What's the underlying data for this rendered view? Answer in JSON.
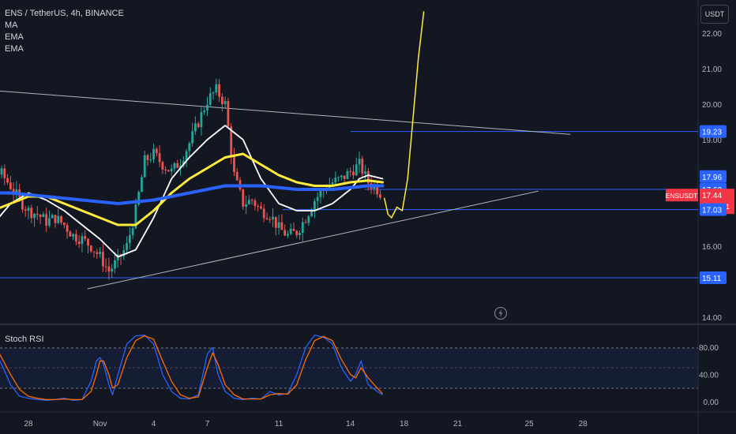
{
  "header": {
    "symbol_line": "ENS / TetherUS, 4h, BINANCE",
    "indicators": [
      "MA",
      "EMA",
      "EMA"
    ]
  },
  "currency_button": "USDT",
  "rsi_title": "Stoch RSI",
  "icons": {
    "flash": "lightning-bolt-icon"
  },
  "colors": {
    "background": "#131722",
    "up": "#26a69a",
    "down": "#ef5350",
    "ma_white": "#ffffff",
    "ema_yellow": "#ffeb3b",
    "ema_blue": "#2962ff",
    "projection": "#ffeb3b",
    "hline": "#2962ff",
    "trendline": "#b2b5be",
    "rsi_k": "#2962ff",
    "rsi_d": "#ff6d00"
  },
  "chart_data": [
    {
      "type": "candlestick",
      "title": "ENS / TetherUS, 4h, BINANCE",
      "ylim": [
        14.0,
        22.6
      ],
      "y_ticks": [
        "22.00",
        "21.00",
        "20.00",
        "19.00",
        "16.00",
        "14.00"
      ],
      "x_ticks": [
        "28",
        "Nov",
        "4",
        "7",
        "11",
        "14",
        "18",
        "21",
        "25",
        "28"
      ],
      "price_tags": [
        {
          "label": "19.23",
          "value": 19.23,
          "color": "#2962ff"
        },
        {
          "label": "17.96",
          "value": 17.96,
          "color": "#2962ff"
        },
        {
          "label": "17.60",
          "value": 17.6,
          "color": "#2962ff"
        },
        {
          "label": "ENSUSDT",
          "value": 17.44,
          "color": "#f23645",
          "sub": "17.44",
          "countdown": "02:03:31"
        },
        {
          "label": "17.03",
          "value": 17.03,
          "color": "#2962ff"
        },
        {
          "label": "15.11",
          "value": 15.11,
          "color": "#2962ff"
        }
      ],
      "hlines": [
        {
          "value": 19.23,
          "from_day": 18.0
        },
        {
          "value": 17.6,
          "from_day": 18.8
        },
        {
          "value": 17.03,
          "from_day": 14.2
        },
        {
          "value": 15.11,
          "from_day": -5.0
        }
      ],
      "trendlines": [
        {
          "from": [
            -5.0,
            20.5
          ],
          "to": [
            30.3,
            19.15
          ]
        },
        {
          "from": [
            3.3,
            14.8
          ],
          "to": [
            28.5,
            17.55
          ]
        }
      ],
      "close_path": [
        [
          -5.0,
          16.2
        ],
        [
          -4.0,
          16.3
        ],
        [
          -3.0,
          16.5
        ],
        [
          -2.6,
          17.1
        ],
        [
          -2.0,
          17.8
        ],
        [
          -1.6,
          18.1
        ],
        [
          -1.0,
          17.7
        ],
        [
          -0.5,
          17.3
        ],
        [
          0.0,
          17.0
        ],
        [
          0.5,
          16.9
        ],
        [
          1.0,
          16.7
        ],
        [
          1.5,
          16.8
        ],
        [
          2.0,
          16.6
        ],
        [
          2.5,
          16.3
        ],
        [
          3.0,
          16.2
        ],
        [
          3.5,
          16.0
        ],
        [
          4.0,
          15.7
        ],
        [
          4.5,
          15.3
        ],
        [
          5.0,
          15.6
        ],
        [
          5.5,
          16.0
        ],
        [
          6.0,
          17.0
        ],
        [
          6.5,
          18.4
        ],
        [
          7.0,
          18.6
        ],
        [
          7.5,
          18.3
        ],
        [
          8.0,
          18.1
        ],
        [
          8.5,
          18.4
        ],
        [
          9.0,
          18.9
        ],
        [
          9.5,
          19.5
        ],
        [
          10.0,
          20.1
        ],
        [
          10.5,
          20.4
        ],
        [
          11.0,
          20.0
        ],
        [
          11.2,
          19.2
        ],
        [
          11.5,
          18.0
        ],
        [
          12.0,
          17.2
        ],
        [
          12.5,
          17.3
        ],
        [
          13.0,
          17.0
        ],
        [
          13.5,
          16.9
        ],
        [
          14.0,
          16.5
        ],
        [
          14.5,
          16.3
        ],
        [
          15.0,
          16.4
        ],
        [
          15.5,
          16.8
        ],
        [
          16.0,
          17.3
        ],
        [
          16.5,
          17.6
        ],
        [
          17.0,
          17.8
        ],
        [
          17.5,
          17.9
        ],
        [
          18.0,
          18.1
        ],
        [
          18.5,
          18.3
        ],
        [
          19.0,
          17.8
        ],
        [
          19.5,
          17.6
        ],
        [
          19.8,
          17.44
        ]
      ],
      "series": [
        {
          "name": "MA",
          "points": [
            [
              -5.0,
              17.0
            ],
            [
              -4.0,
              16.6
            ],
            [
              -3.0,
              16.4
            ],
            [
              -2.0,
              16.6
            ],
            [
              -1.0,
              17.2
            ],
            [
              0.0,
              17.5
            ],
            [
              1.0,
              17.3
            ],
            [
              2.0,
              17.0
            ],
            [
              3.0,
              16.6
            ],
            [
              4.0,
              16.2
            ],
            [
              5.0,
              15.7
            ],
            [
              6.0,
              15.9
            ],
            [
              7.0,
              16.8
            ],
            [
              8.0,
              17.9
            ],
            [
              9.0,
              18.5
            ],
            [
              10.0,
              19.0
            ],
            [
              11.0,
              19.4
            ],
            [
              12.0,
              19.0
            ],
            [
              13.0,
              17.9
            ],
            [
              14.0,
              17.2
            ],
            [
              15.0,
              17.0
            ],
            [
              16.0,
              17.0
            ],
            [
              17.0,
              17.2
            ],
            [
              18.0,
              17.6
            ],
            [
              18.5,
              17.9
            ],
            [
              19.0,
              18.0
            ],
            [
              19.8,
              17.9
            ]
          ]
        },
        {
          "name": "EMA",
          "points": [
            [
              -5.0,
              17.2
            ],
            [
              -4.0,
              17.0
            ],
            [
              -3.0,
              16.9
            ],
            [
              -2.0,
              17.0
            ],
            [
              -1.0,
              17.2
            ],
            [
              0.0,
              17.4
            ],
            [
              1.0,
              17.4
            ],
            [
              2.0,
              17.2
            ],
            [
              3.0,
              17.0
            ],
            [
              4.0,
              16.8
            ],
            [
              5.0,
              16.6
            ],
            [
              6.0,
              16.6
            ],
            [
              7.0,
              17.0
            ],
            [
              8.0,
              17.5
            ],
            [
              9.0,
              17.9
            ],
            [
              10.0,
              18.2
            ],
            [
              11.0,
              18.5
            ],
            [
              12.0,
              18.6
            ],
            [
              13.0,
              18.3
            ],
            [
              14.0,
              18.0
            ],
            [
              15.0,
              17.8
            ],
            [
              16.0,
              17.7
            ],
            [
              17.0,
              17.7
            ],
            [
              18.0,
              17.8
            ],
            [
              19.0,
              17.85
            ],
            [
              19.8,
              17.8
            ]
          ]
        },
        {
          "name": "EMA",
          "points": [
            [
              -5.0,
              17.6
            ],
            [
              -3.0,
              17.5
            ],
            [
              -1.0,
              17.5
            ],
            [
              1.0,
              17.4
            ],
            [
              3.0,
              17.3
            ],
            [
              5.0,
              17.2
            ],
            [
              7.0,
              17.3
            ],
            [
              9.0,
              17.5
            ],
            [
              11.0,
              17.7
            ],
            [
              13.0,
              17.7
            ],
            [
              15.0,
              17.6
            ],
            [
              17.0,
              17.6
            ],
            [
              19.0,
              17.7
            ],
            [
              19.8,
              17.7
            ]
          ]
        },
        {
          "name": "projection",
          "points": [
            [
              19.9,
              17.35
            ],
            [
              20.1,
              16.9
            ],
            [
              20.3,
              16.8
            ],
            [
              20.6,
              17.1
            ],
            [
              20.9,
              17.0
            ],
            [
              21.2,
              17.9
            ],
            [
              21.5,
              19.6
            ],
            [
              21.8,
              21.3
            ],
            [
              22.1,
              22.6
            ]
          ]
        }
      ]
    },
    {
      "type": "line",
      "title": "Stoch RSI",
      "ylim": [
        0,
        105
      ],
      "y_ticks": [
        "80.00",
        "40.00",
        "0.00"
      ],
      "band": [
        20,
        80
      ],
      "series": [
        {
          "name": "K",
          "points": [
            [
              -5.0,
              30
            ],
            [
              -4.5,
              55
            ],
            [
              -4.0,
              85
            ],
            [
              -3.5,
              97
            ],
            [
              -3.0,
              98
            ],
            [
              -2.5,
              95
            ],
            [
              -2.0,
              80
            ],
            [
              -1.5,
              55
            ],
            [
              -1.0,
              25
            ],
            [
              -0.5,
              8
            ],
            [
              0.0,
              5
            ],
            [
              0.5,
              3
            ],
            [
              1.0,
              2
            ],
            [
              1.5,
              3
            ],
            [
              2.0,
              5
            ],
            [
              2.5,
              2
            ],
            [
              3.0,
              3
            ],
            [
              3.5,
              30
            ],
            [
              3.8,
              60
            ],
            [
              4.0,
              65
            ],
            [
              4.2,
              55
            ],
            [
              4.5,
              25
            ],
            [
              4.7,
              10
            ],
            [
              5.0,
              40
            ],
            [
              5.5,
              85
            ],
            [
              6.0,
              97
            ],
            [
              6.5,
              98
            ],
            [
              7.0,
              85
            ],
            [
              7.5,
              40
            ],
            [
              8.0,
              15
            ],
            [
              8.5,
              5
            ],
            [
              9.0,
              4
            ],
            [
              9.5,
              10
            ],
            [
              10.0,
              70
            ],
            [
              10.3,
              80
            ],
            [
              10.6,
              40
            ],
            [
              11.0,
              15
            ],
            [
              11.5,
              5
            ],
            [
              12.0,
              3
            ],
            [
              12.5,
              5
            ],
            [
              13.0,
              4
            ],
            [
              13.5,
              15
            ],
            [
              14.0,
              10
            ],
            [
              14.5,
              12
            ],
            [
              15.0,
              40
            ],
            [
              15.5,
              80
            ],
            [
              16.0,
              98
            ],
            [
              16.5,
              95
            ],
            [
              17.0,
              85
            ],
            [
              17.5,
              50
            ],
            [
              18.0,
              30
            ],
            [
              18.3,
              40
            ],
            [
              18.6,
              60
            ],
            [
              19.0,
              25
            ],
            [
              19.5,
              15
            ],
            [
              19.8,
              10
            ]
          ]
        },
        {
          "name": "D",
          "points": [
            [
              -5.0,
              20
            ],
            [
              -4.5,
              40
            ],
            [
              -4.0,
              70
            ],
            [
              -3.5,
              92
            ],
            [
              -3.0,
              97
            ],
            [
              -2.5,
              96
            ],
            [
              -2.0,
              88
            ],
            [
              -1.5,
              65
            ],
            [
              -1.0,
              40
            ],
            [
              -0.5,
              18
            ],
            [
              0.0,
              8
            ],
            [
              0.5,
              5
            ],
            [
              1.0,
              3
            ],
            [
              1.5,
              3
            ],
            [
              2.0,
              4
            ],
            [
              2.5,
              3
            ],
            [
              3.0,
              3
            ],
            [
              3.5,
              15
            ],
            [
              3.8,
              40
            ],
            [
              4.0,
              60
            ],
            [
              4.2,
              60
            ],
            [
              4.5,
              40
            ],
            [
              4.7,
              20
            ],
            [
              5.0,
              25
            ],
            [
              5.5,
              65
            ],
            [
              6.0,
              90
            ],
            [
              6.5,
              97
            ],
            [
              7.0,
              92
            ],
            [
              7.5,
              60
            ],
            [
              8.0,
              30
            ],
            [
              8.5,
              10
            ],
            [
              9.0,
              5
            ],
            [
              9.5,
              7
            ],
            [
              10.0,
              50
            ],
            [
              10.3,
              72
            ],
            [
              10.6,
              55
            ],
            [
              11.0,
              25
            ],
            [
              11.5,
              10
            ],
            [
              12.0,
              4
            ],
            [
              12.5,
              4
            ],
            [
              13.0,
              4
            ],
            [
              13.5,
              10
            ],
            [
              14.0,
              12
            ],
            [
              14.5,
              11
            ],
            [
              15.0,
              25
            ],
            [
              15.5,
              62
            ],
            [
              16.0,
              90
            ],
            [
              16.5,
              96
            ],
            [
              17.0,
              90
            ],
            [
              17.5,
              62
            ],
            [
              18.0,
              40
            ],
            [
              18.3,
              35
            ],
            [
              18.6,
              50
            ],
            [
              19.0,
              35
            ],
            [
              19.5,
              20
            ],
            [
              19.8,
              12
            ]
          ]
        }
      ]
    }
  ]
}
